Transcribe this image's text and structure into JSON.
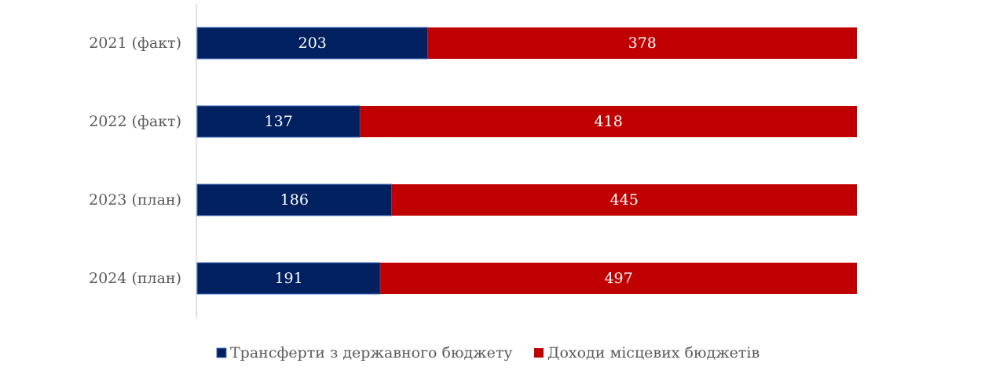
{
  "chart_data": {
    "type": "bar",
    "orientation": "horizontal",
    "stacked": "percent",
    "categories": [
      "2021 (факт)",
      "2022 (факт)",
      "2023 (план)",
      "2024 (план)"
    ],
    "series": [
      {
        "name": "Трансферти з державного бюджету",
        "color": "#002060",
        "values": [
          203,
          137,
          186,
          191
        ]
      },
      {
        "name": "Доходи місцевих бюджетів",
        "color": "#C00000",
        "values": [
          378,
          418,
          445,
          497
        ]
      }
    ],
    "title": "",
    "xlabel": "",
    "ylabel": "",
    "grid": false,
    "legend_position": "bottom"
  }
}
